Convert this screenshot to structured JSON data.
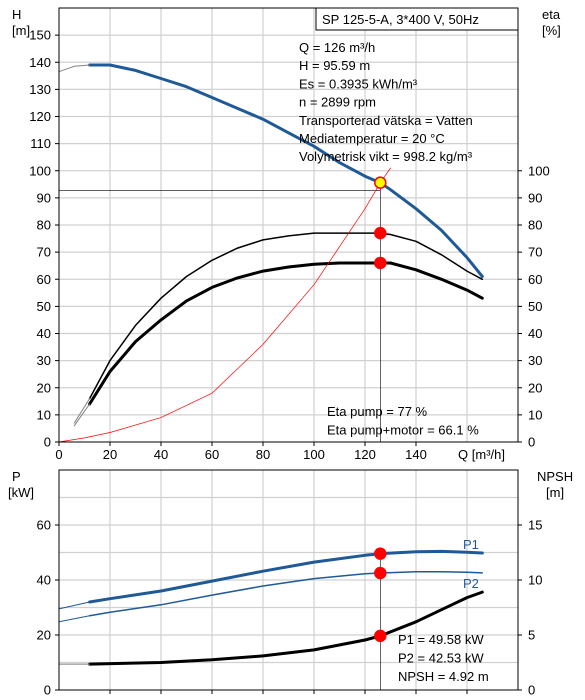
{
  "chart_data": [
    {
      "type": "line",
      "title": "SP 125-5-A, 3*400 V, 50Hz",
      "xlabel": "Q [m³/h]",
      "xlim": [
        0,
        180
      ],
      "xticks": [
        "0",
        "20",
        "40",
        "60",
        "80",
        "100",
        "120",
        "140"
      ],
      "y_left": {
        "label_top": "H",
        "label_unit": "[m]",
        "lim": [
          0,
          160
        ],
        "ticks": [
          "0",
          "10",
          "20",
          "30",
          "40",
          "50",
          "60",
          "70",
          "80",
          "90",
          "100",
          "110",
          "120",
          "130",
          "140",
          "150"
        ]
      },
      "y_right": {
        "label_top": "eta",
        "label_unit": "[%]",
        "lim": [
          0,
          160
        ],
        "ticks": [
          "0",
          "10",
          "20",
          "30",
          "40",
          "50",
          "60",
          "70",
          "80",
          "90",
          "100"
        ]
      },
      "grid": true,
      "info_lines": [
        "Q = 126 m³/h",
        "H = 95.59 m",
        "Es = 0.3935 kWh/m³",
        "n = 2899 rpm",
        "Transporterad vätska = Vatten",
        "Mediatemperatur = 20 °C",
        "Volymetrisk vikt = 998.2 kg/m³"
      ],
      "eta_lines": [
        "Eta pump = 77 %",
        "Eta pump+motor = 66.1 %"
      ],
      "series": [
        {
          "id": "H",
          "color": "#1f5a96",
          "width": 3,
          "points": [
            [
              12,
              139
            ],
            [
              20,
              139
            ],
            [
              30,
              137
            ],
            [
              40,
              134
            ],
            [
              50,
              131
            ],
            [
              60,
              127
            ],
            [
              70,
              123
            ],
            [
              80,
              119
            ],
            [
              90,
              114
            ],
            [
              100,
              109
            ],
            [
              110,
              103
            ],
            [
              120,
              98
            ],
            [
              126,
              95.6
            ],
            [
              130,
              93
            ],
            [
              140,
              86
            ],
            [
              150,
              78
            ],
            [
              160,
              68
            ],
            [
              166,
              61
            ]
          ]
        },
        {
          "id": "H_ext",
          "color": "#7f7f7f",
          "width": 1,
          "points": [
            [
              0,
              136.5
            ],
            [
              6,
              138.5
            ],
            [
              12,
              139
            ]
          ]
        },
        {
          "id": "eta_pump",
          "color": "#000000",
          "width": 1.5,
          "points": [
            [
              12,
              16
            ],
            [
              20,
              30
            ],
            [
              30,
              43
            ],
            [
              40,
              53
            ],
            [
              50,
              61
            ],
            [
              60,
              67
            ],
            [
              70,
              71.5
            ],
            [
              80,
              74.5
            ],
            [
              90,
              76
            ],
            [
              100,
              77
            ],
            [
              110,
              77
            ],
            [
              120,
              77
            ],
            [
              126,
              77
            ],
            [
              130,
              76.5
            ],
            [
              140,
              74
            ],
            [
              150,
              69
            ],
            [
              160,
              63
            ],
            [
              166,
              60
            ]
          ]
        },
        {
          "id": "eta_pump_motor",
          "color": "#000000",
          "width": 3,
          "points": [
            [
              12,
              14
            ],
            [
              20,
              26
            ],
            [
              30,
              37
            ],
            [
              40,
              45
            ],
            [
              50,
              52
            ],
            [
              60,
              57
            ],
            [
              70,
              60.5
            ],
            [
              80,
              63
            ],
            [
              90,
              64.5
            ],
            [
              100,
              65.5
            ],
            [
              110,
              66
            ],
            [
              120,
              66
            ],
            [
              126,
              66
            ],
            [
              130,
              66
            ],
            [
              140,
              63.5
            ],
            [
              150,
              60
            ],
            [
              160,
              56
            ],
            [
              166,
              53
            ]
          ]
        },
        {
          "id": "eta_ext_a",
          "color": "#7f7f7f",
          "width": 1,
          "points": [
            [
              6,
              7
            ],
            [
              12,
              16
            ]
          ]
        },
        {
          "id": "eta_ext_b",
          "color": "#7f7f7f",
          "width": 1,
          "points": [
            [
              6,
              6
            ],
            [
              12,
              14
            ]
          ]
        },
        {
          "id": "system_curve",
          "color": "#ff0000",
          "width": 0.7,
          "points": [
            [
              0,
              0
            ],
            [
              10,
              1.5
            ],
            [
              20,
              3.5
            ],
            [
              40,
              9
            ],
            [
              60,
              18
            ],
            [
              80,
              36
            ],
            [
              100,
              58
            ],
            [
              110,
              72
            ],
            [
              120,
              86
            ],
            [
              126,
              95.6
            ],
            [
              130,
              101
            ]
          ]
        }
      ],
      "markers": [
        {
          "x": 126,
          "y": 95.6,
          "fill": "#ffff00",
          "stroke": "#ff0000"
        },
        {
          "x": 126,
          "y": 77,
          "fill": "#ff0000",
          "stroke": "#ff0000"
        },
        {
          "x": 126,
          "y": 66,
          "fill": "#ff0000",
          "stroke": "#ff0000"
        }
      ],
      "duty": {
        "q": 126,
        "h": 95.6
      }
    },
    {
      "type": "line",
      "xlim": [
        0,
        180
      ],
      "y_left": {
        "label_top": "P",
        "label_unit": "[kW]",
        "lim": [
          0,
          80
        ],
        "ticks": [
          "0",
          "20",
          "40",
          "60"
        ]
      },
      "y_right": {
        "label_top": "NPSH",
        "label_unit": "[m]",
        "lim": [
          0,
          20
        ],
        "ticks": [
          "0",
          "5",
          "10",
          "15"
        ]
      },
      "grid": true,
      "info_lines": [
        "P1 = 49.58 kW",
        "P2 = 42.53 kW",
        "NPSH = 4.92 m"
      ],
      "series_labels": [
        "P1",
        "P2"
      ],
      "series": [
        {
          "id": "P1",
          "color": "#1f5a96",
          "width": 3,
          "points": [
            [
              12,
              32
            ],
            [
              20,
              33.2
            ],
            [
              40,
              36
            ],
            [
              60,
              39.6
            ],
            [
              80,
              43.2
            ],
            [
              100,
              46.5
            ],
            [
              120,
              49
            ],
            [
              126,
              49.58
            ],
            [
              140,
              50.3
            ],
            [
              150,
              50.4
            ],
            [
              160,
              50.1
            ],
            [
              166,
              49.8
            ]
          ]
        },
        {
          "id": "P1_ext",
          "color": "#1f5a96",
          "width": 1,
          "points": [
            [
              0,
              29.5
            ],
            [
              12,
              32
            ]
          ]
        },
        {
          "id": "P2",
          "color": "#1f5a96",
          "width": 1.5,
          "points": [
            [
              12,
              27
            ],
            [
              20,
              28.3
            ],
            [
              40,
              31
            ],
            [
              60,
              34.5
            ],
            [
              80,
              37.8
            ],
            [
              100,
              40.5
            ],
            [
              120,
              42.3
            ],
            [
              126,
              42.53
            ],
            [
              140,
              43
            ],
            [
              150,
              43
            ],
            [
              160,
              42.8
            ],
            [
              166,
              42.6
            ]
          ]
        },
        {
          "id": "P2_ext",
          "color": "#1f5a96",
          "width": 1,
          "points": [
            [
              0,
              24.8
            ],
            [
              12,
              27
            ]
          ]
        },
        {
          "id": "NPSH",
          "color": "#000000",
          "width": 3,
          "axis": "right",
          "points": [
            [
              12,
              2.35
            ],
            [
              40,
              2.5
            ],
            [
              60,
              2.75
            ],
            [
              80,
              3.1
            ],
            [
              100,
              3.65
            ],
            [
              120,
              4.55
            ],
            [
              126,
              4.92
            ],
            [
              140,
              6.2
            ],
            [
              150,
              7.3
            ],
            [
              160,
              8.4
            ],
            [
              166,
              8.9
            ]
          ]
        },
        {
          "id": "NPSH_ext",
          "color": "#7f7f7f",
          "width": 1,
          "axis": "right",
          "points": [
            [
              0,
              2.35
            ],
            [
              12,
              2.35
            ]
          ]
        }
      ],
      "markers": [
        {
          "x": 126,
          "y": 49.58,
          "fill": "#ff0000",
          "stroke": "#ff0000"
        },
        {
          "x": 126,
          "y": 42.53,
          "fill": "#ff0000",
          "stroke": "#ff0000"
        },
        {
          "x": 126,
          "y": 4.92,
          "fill": "#ff0000",
          "stroke": "#ff0000",
          "axis": "right"
        }
      ]
    }
  ]
}
